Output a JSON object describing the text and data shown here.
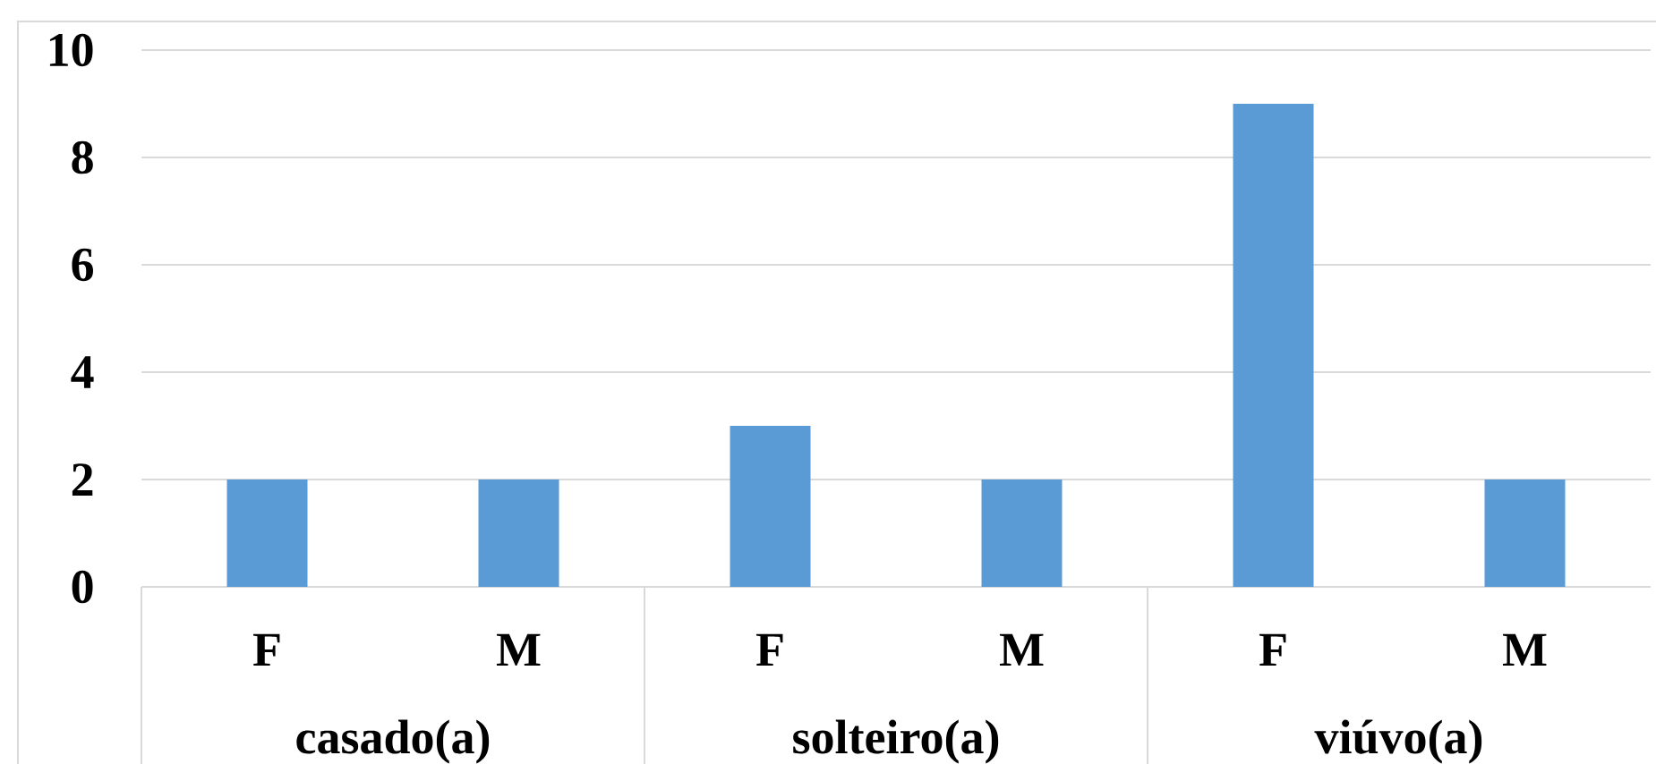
{
  "chart_data": {
    "type": "bar",
    "categories": [
      "F",
      "M",
      "F",
      "M",
      "F",
      "M"
    ],
    "values": [
      2,
      2,
      3,
      2,
      9,
      2
    ],
    "color": "#5b9bd5",
    "ylim": [
      0,
      10
    ],
    "yticks": [
      0,
      2,
      4,
      6,
      8,
      10
    ],
    "grid": "y",
    "annotations": [
      "casado(a)",
      "solteiro(a)",
      "viúvo(a)"
    ]
  }
}
